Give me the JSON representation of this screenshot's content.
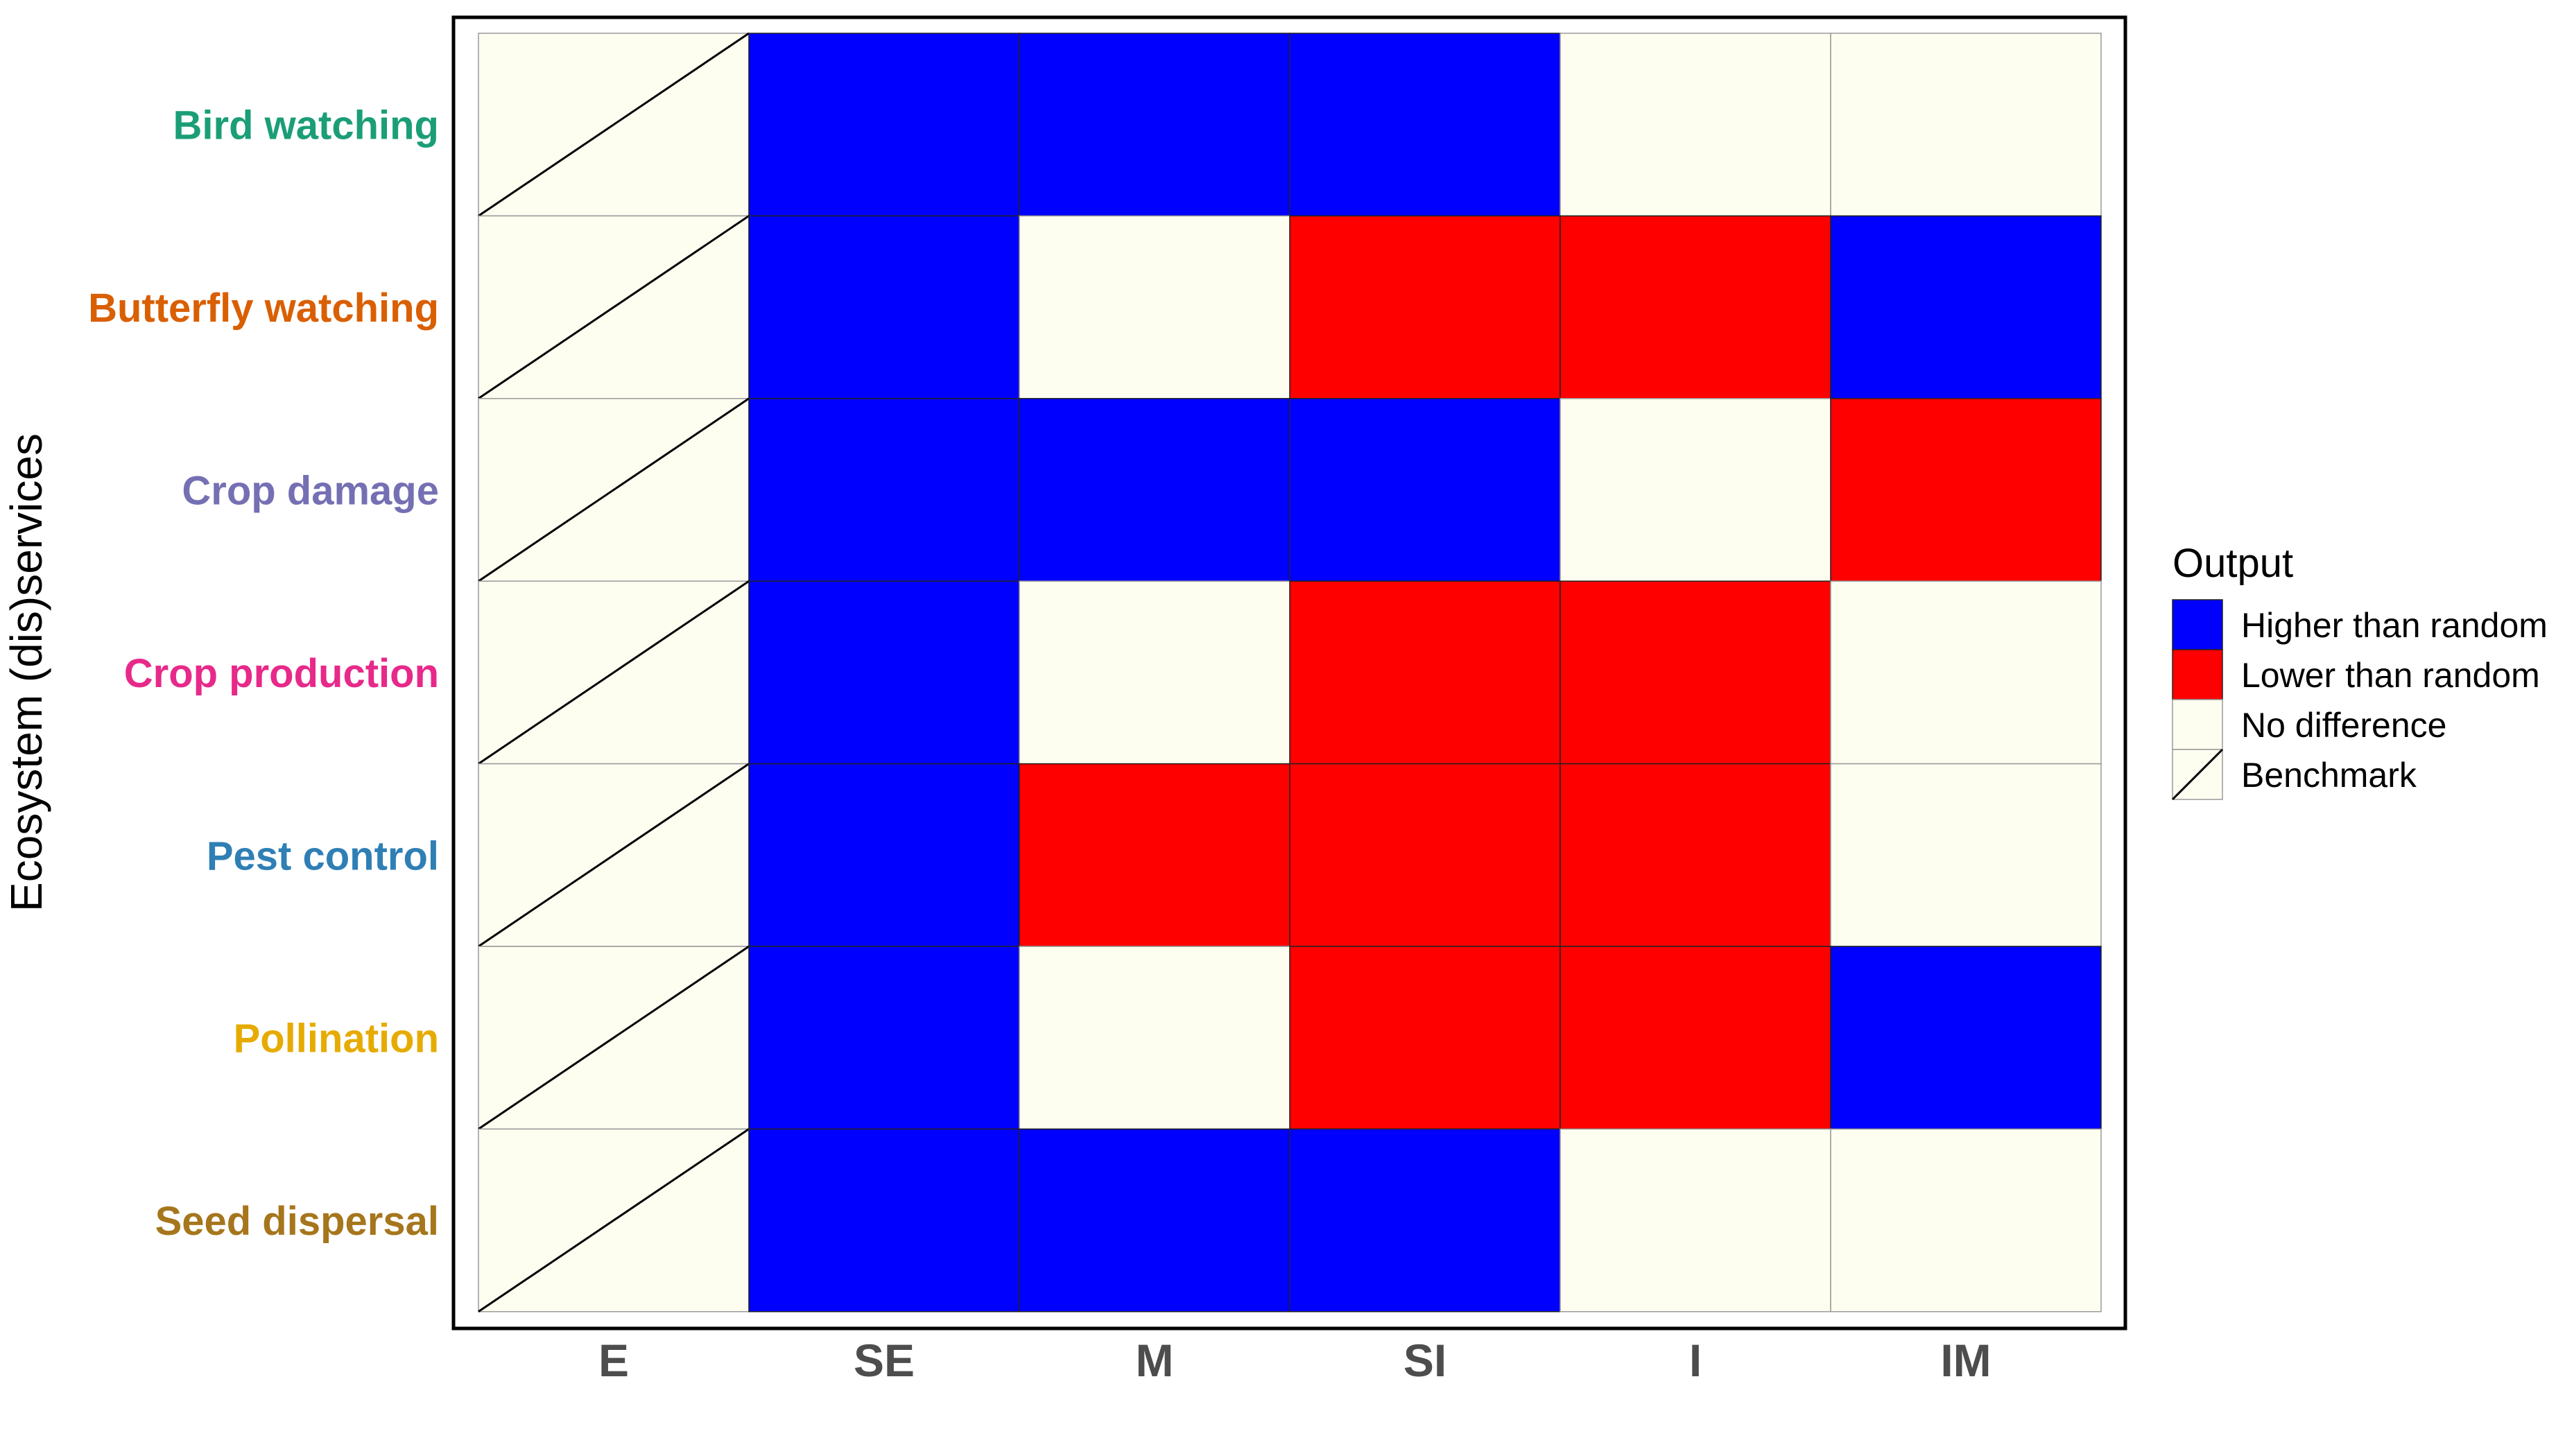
{
  "chart_data": {
    "type": "heatmap",
    "ylabel": "Ecosystem (dis)services",
    "xlabel": "",
    "columns": [
      "E",
      "SE",
      "M",
      "SI",
      "I",
      "IM"
    ],
    "rows": [
      {
        "name": "Bird watching",
        "color": "#1b9e77"
      },
      {
        "name": "Butterfly watching",
        "color": "#d95f02"
      },
      {
        "name": "Crop damage",
        "color": "#7570b3"
      },
      {
        "name": "Crop production",
        "color": "#e7298a"
      },
      {
        "name": "Pest control",
        "color": "#2f7fb5"
      },
      {
        "name": "Pollination",
        "color": "#e6ab02"
      },
      {
        "name": "Seed dispersal",
        "color": "#a6761d"
      }
    ],
    "values": [
      [
        "benchmark",
        "higher",
        "higher",
        "higher",
        "none",
        "none"
      ],
      [
        "benchmark",
        "higher",
        "none",
        "lower",
        "lower",
        "higher"
      ],
      [
        "benchmark",
        "higher",
        "higher",
        "higher",
        "none",
        "lower"
      ],
      [
        "benchmark",
        "higher",
        "none",
        "lower",
        "lower",
        "none"
      ],
      [
        "benchmark",
        "higher",
        "lower",
        "lower",
        "lower",
        "none"
      ],
      [
        "benchmark",
        "higher",
        "none",
        "lower",
        "lower",
        "higher"
      ],
      [
        "benchmark",
        "higher",
        "higher",
        "higher",
        "none",
        "none"
      ]
    ],
    "legend": {
      "title": "Output",
      "position": "right",
      "items": [
        {
          "key": "higher",
          "label": "Higher than random",
          "color": "#0000ff"
        },
        {
          "key": "lower",
          "label": "Lower than random",
          "color": "#ff0000"
        },
        {
          "key": "none",
          "label": "No difference",
          "color": "#fdfdf0"
        },
        {
          "key": "benchmark",
          "label": "Benchmark",
          "color": "#fdfdf0"
        }
      ]
    }
  }
}
